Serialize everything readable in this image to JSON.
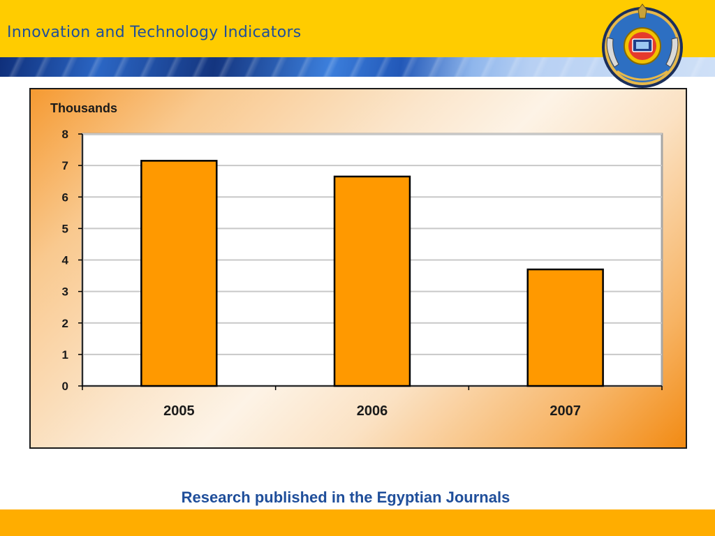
{
  "slide": {
    "title": "Innovation and Technology Indicators",
    "caption": "Research published in the Egyptian Journals"
  },
  "logo": {
    "icon": "emblem-seal-icon"
  },
  "colors": {
    "header": "#ffcc00",
    "title_text": "#1f4e9a",
    "bar_fill": "#ff9900",
    "bar_stroke": "#000000",
    "footer": "#ffad00"
  },
  "chart_data": {
    "type": "bar",
    "title": "",
    "ylabel": "Thousands",
    "xlabel": "",
    "categories": [
      "2005",
      "2006",
      "2007"
    ],
    "values": [
      7.15,
      6.65,
      3.7
    ],
    "ylim": [
      0,
      8
    ],
    "yticks": [
      0,
      1,
      2,
      3,
      4,
      5,
      6,
      7,
      8
    ],
    "grid": true,
    "legend": "none"
  }
}
